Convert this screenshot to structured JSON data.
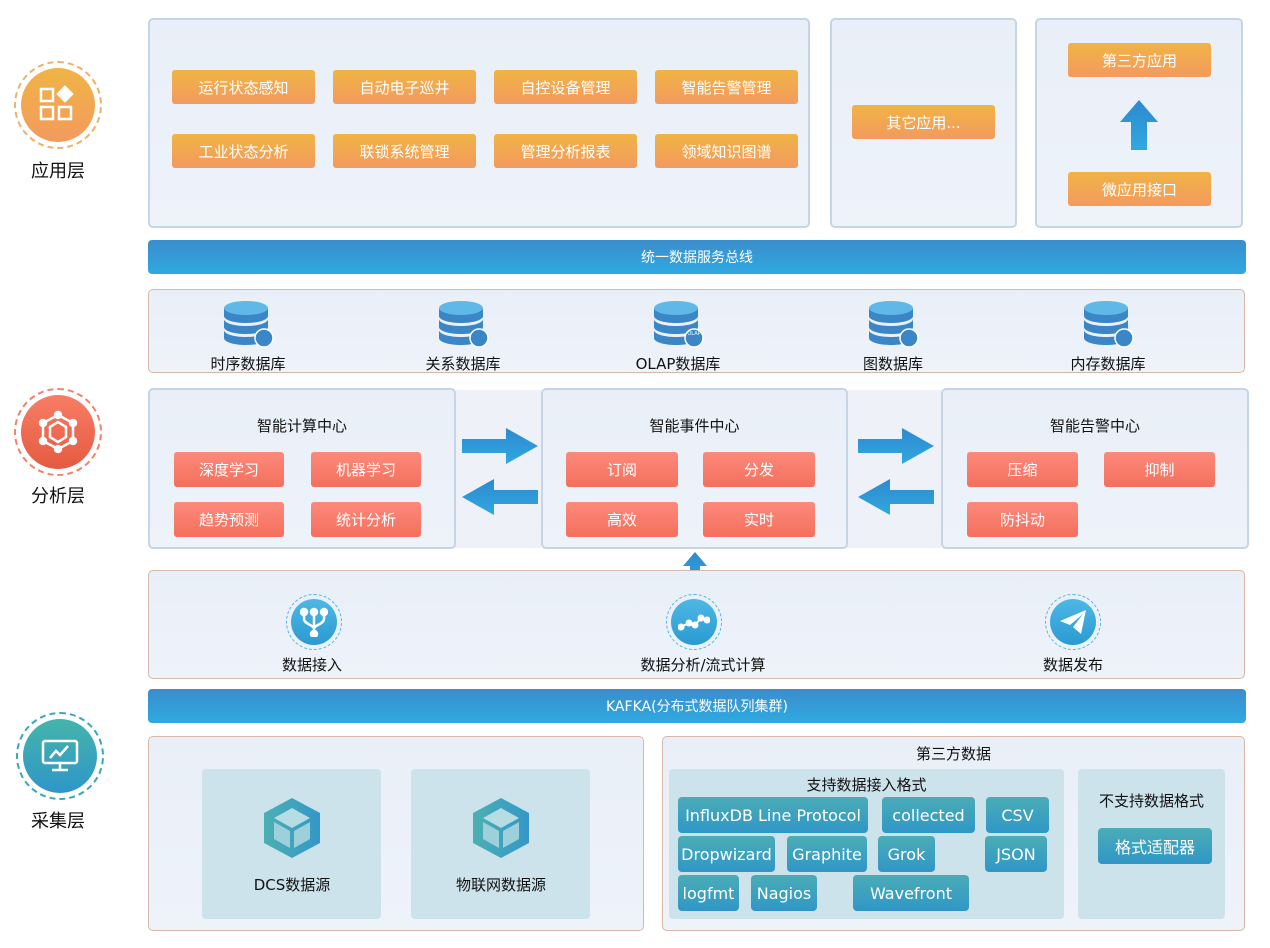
{
  "layers": {
    "app": "应用层",
    "analysis": "分析层",
    "collect": "采集层"
  },
  "app": {
    "modules": [
      "运行状态感知",
      "自动电子巡井",
      "自控设备管理",
      "智能告警管理",
      "工业状态分析",
      "联锁系统管理",
      "管理分析报表",
      "领域知识图谱"
    ],
    "other": "其它应用...",
    "third_party": "第三方应用",
    "micro_api": "微应用接口"
  },
  "bus": "统一数据服务总线",
  "databases": [
    {
      "label": "时序数据库",
      "badge_icon": "clock-icon"
    },
    {
      "label": "关系数据库",
      "badge_icon": "relation-icon"
    },
    {
      "label": "OLAP数据库",
      "badge_icon": "olap-icon",
      "badge_text": "OLAP"
    },
    {
      "label": "图数据库",
      "badge_icon": "image-icon"
    },
    {
      "label": "内存数据库",
      "badge_icon": "memory-icon"
    }
  ],
  "centers": [
    {
      "title": "智能计算中心",
      "items": [
        "深度学习",
        "机器学习",
        "趋势预测",
        "统计分析"
      ]
    },
    {
      "title": "智能事件中心",
      "items": [
        "订阅",
        "分发",
        "高效",
        "实时"
      ]
    },
    {
      "title": "智能告警中心",
      "items": [
        "压缩",
        "抑制",
        "防抖动"
      ]
    }
  ],
  "processing": [
    "数据接入",
    "数据分析/流式计算",
    "数据发布"
  ],
  "kafka": "KAFKA(分布式数据队列集群)",
  "sources": [
    "DCS数据源",
    "物联网数据源"
  ],
  "third_data": {
    "title": "第三方数据",
    "supported_title": "支持数据接入格式",
    "formats": [
      "InfluxDB Line Protocol",
      "collected",
      "CSV",
      "Dropwizard",
      "Graphite",
      "Grok",
      "JSON",
      "logfmt",
      "Nagios",
      "Wavefront"
    ],
    "unsupported_title": "不支持数据格式",
    "adapter": "格式适配器"
  },
  "colors": {
    "app": "#f2a54f",
    "analysis": "#f06a52",
    "collect": "#3aa7b8",
    "bus": "#2ea3dd",
    "arrow": "#2f95d4"
  }
}
